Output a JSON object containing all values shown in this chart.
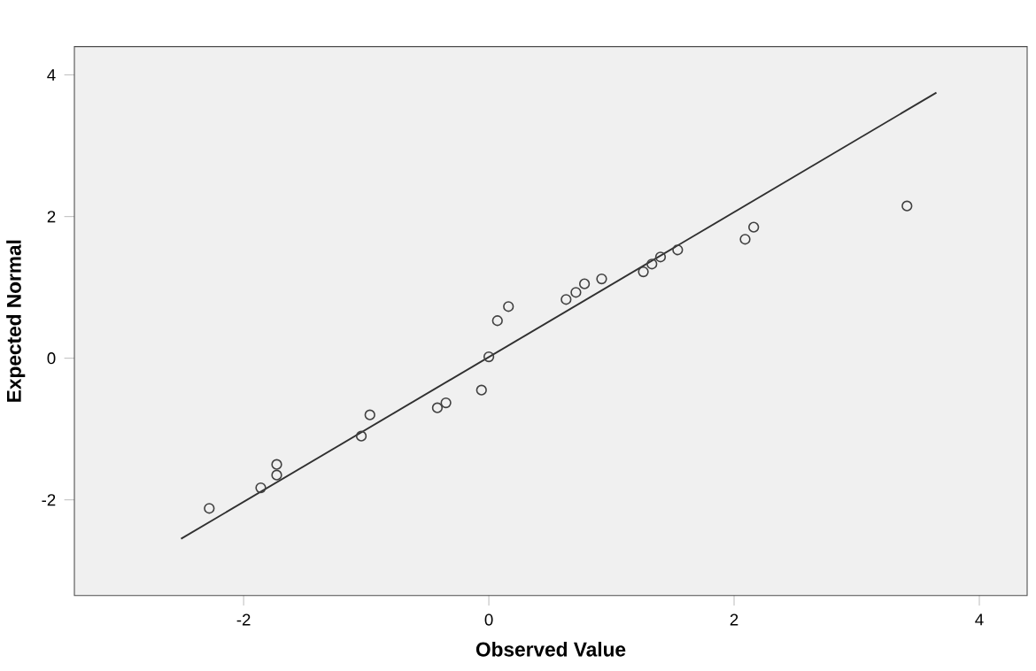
{
  "chart_data": {
    "type": "scatter",
    "xlabel": "Observed Value",
    "ylabel": "Expected Normal",
    "xlim": [
      -3.38,
      4.39
    ],
    "ylim": [
      -3.35,
      4.4
    ],
    "xticks": [
      -2,
      0,
      2,
      4
    ],
    "yticks": [
      -2,
      0,
      2,
      4
    ],
    "grid": false,
    "series": [
      {
        "color": "#404040",
        "marker": "circle",
        "x": [
          -2.28,
          -1.86,
          -1.73,
          -1.73,
          -1.04,
          -0.97,
          -0.42,
          -0.35,
          -0.06,
          0,
          0.07,
          0.16,
          0.63,
          0.71,
          0.78,
          0.92,
          1.26,
          1.33,
          1.4,
          1.54,
          2.09,
          2.16,
          3.41
        ],
        "values": [
          -2.12,
          -1.83,
          -1.5,
          -1.65,
          -1.1,
          -0.8,
          -0.7,
          -0.63,
          -0.45,
          0.02,
          0.53,
          0.73,
          0.83,
          0.93,
          1.05,
          1.12,
          1.22,
          1.33,
          1.43,
          1.53,
          1.68,
          1.85,
          2.15
        ]
      },
      {
        "type": "line",
        "color": "#303030",
        "marker": "none",
        "x": [
          -2.51,
          3.65
        ],
        "values": [
          -2.55,
          3.75
        ]
      }
    ]
  }
}
